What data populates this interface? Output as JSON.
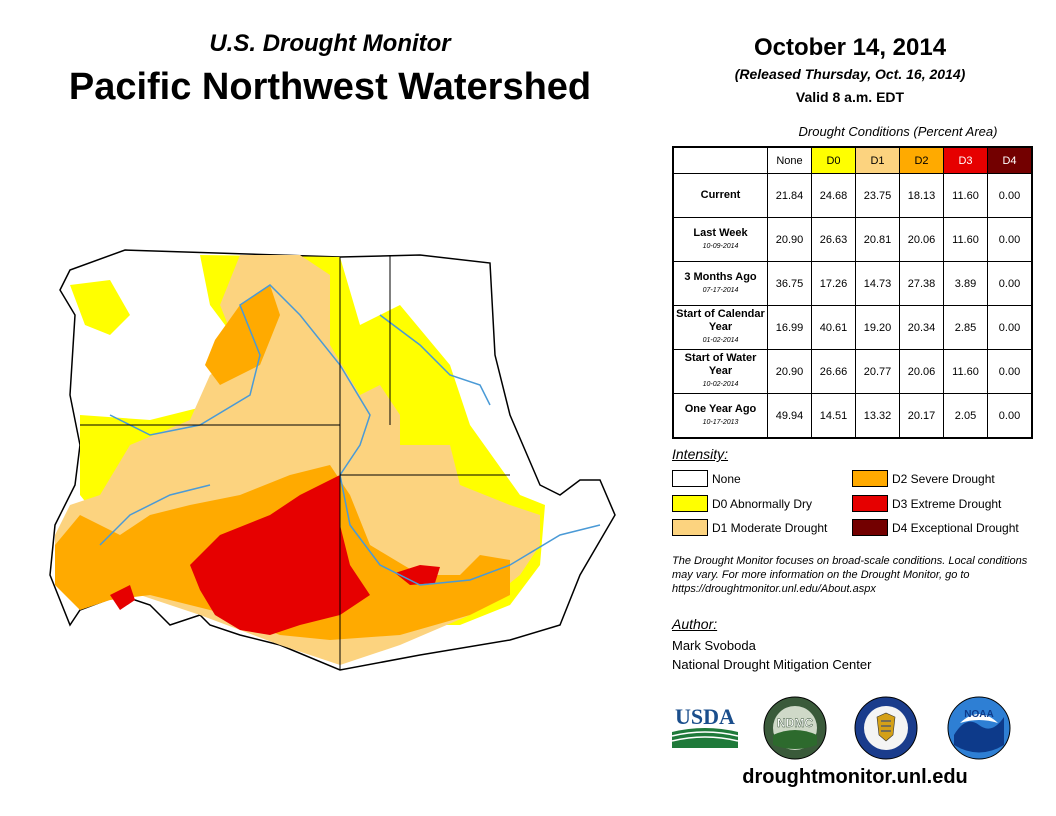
{
  "header": {
    "subtitle": "U.S. Drought Monitor",
    "title": "Pacific Northwest Watershed",
    "date": "October 14, 2014",
    "released": "(Released Thursday, Oct. 16, 2014)",
    "valid": "Valid 8 a.m. EDT"
  },
  "table": {
    "title": "Drought Conditions (Percent Area)",
    "columns": [
      "None",
      "D0",
      "D1",
      "D2",
      "D3",
      "D4"
    ],
    "column_colors": [
      "#ffffff",
      "#ffff00",
      "#fcd37f",
      "#ffaa00",
      "#e60000",
      "#730000"
    ],
    "rows": [
      {
        "label": "Current",
        "date": "",
        "values": [
          "21.84",
          "24.68",
          "23.75",
          "18.13",
          "11.60",
          "0.00"
        ]
      },
      {
        "label": "Last Week",
        "date": "10-09-2014",
        "values": [
          "20.90",
          "26.63",
          "20.81",
          "20.06",
          "11.60",
          "0.00"
        ]
      },
      {
        "label": "3 Months Ago",
        "date": "07-17-2014",
        "values": [
          "36.75",
          "17.26",
          "14.73",
          "27.38",
          "3.89",
          "0.00"
        ]
      },
      {
        "label": "Start of Calendar Year",
        "date": "01-02-2014",
        "values": [
          "16.99",
          "40.61",
          "19.20",
          "20.34",
          "2.85",
          "0.00"
        ]
      },
      {
        "label": "Start of Water Year",
        "date": "10-02-2014",
        "values": [
          "20.90",
          "26.66",
          "20.77",
          "20.06",
          "11.60",
          "0.00"
        ]
      },
      {
        "label": "One Year Ago",
        "date": "10-17-2013",
        "values": [
          "49.94",
          "14.51",
          "13.32",
          "20.17",
          "2.05",
          "0.00"
        ]
      }
    ]
  },
  "legend": {
    "title": "Intensity:",
    "items": [
      {
        "label": "None",
        "color": "#ffffff"
      },
      {
        "label": "D0 Abnormally Dry",
        "color": "#ffff00"
      },
      {
        "label": "D1 Moderate Drought",
        "color": "#fcd37f"
      },
      {
        "label": "D2 Severe Drought",
        "color": "#ffaa00"
      },
      {
        "label": "D3 Extreme Drought",
        "color": "#e60000"
      },
      {
        "label": "D4 Exceptional Drought",
        "color": "#730000"
      }
    ]
  },
  "note": "The Drought Monitor focuses on broad-scale conditions. Local conditions may vary. For more information on the Drought Monitor, go to https://droughtmonitor.unl.edu/About.aspx",
  "author": {
    "title": "Author:",
    "name": "Mark Svoboda",
    "org": "National Drought Mitigation Center"
  },
  "logos": {
    "usda": "USDA",
    "ndmc": "NDMC",
    "noaa": "NOAA"
  },
  "website": "droughtmonitor.unl.edu"
}
